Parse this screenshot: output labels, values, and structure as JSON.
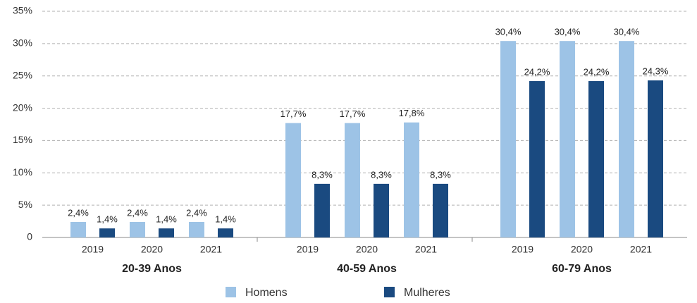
{
  "chart_data": {
    "type": "bar",
    "groups": [
      "20-39 Anos",
      "40-59 Anos",
      "60-79 Anos"
    ],
    "categories": [
      "2019",
      "2020",
      "2021",
      "2019",
      "2020",
      "2021",
      "2019",
      "2020",
      "2021"
    ],
    "series": [
      {
        "name": "Homens",
        "color": "#9dc3e6",
        "values": [
          2.4,
          2.4,
          2.4,
          17.7,
          17.7,
          17.8,
          30.4,
          30.4,
          30.4
        ],
        "value_labels": [
          "2,4%",
          "2,4%",
          "2,4%",
          "17,7%",
          "17,7%",
          "17,8%",
          "30,4%",
          "30,4%",
          "30,4%"
        ]
      },
      {
        "name": "Mulheres",
        "color": "#1a4a80",
        "values": [
          1.4,
          1.4,
          1.4,
          8.3,
          8.3,
          8.3,
          24.2,
          24.2,
          24.3
        ],
        "value_labels": [
          "1,4%",
          "1,4%",
          "1,4%",
          "8,3%",
          "8,3%",
          "8,3%",
          "24,2%",
          "24,2%",
          "24,3%"
        ]
      }
    ],
    "ylim": [
      0,
      35
    ],
    "yticks": [
      0,
      {
        "value": 5,
        "label": "5%"
      },
      {
        "value": 10,
        "label": "10%"
      },
      {
        "value": 15,
        "label": "15%"
      },
      {
        "value": 20,
        "label": "20%"
      },
      {
        "value": 25,
        "label": "25%"
      },
      {
        "value": 30,
        "label": "30%"
      },
      {
        "value": 35,
        "label": "35%"
      }
    ],
    "grid": true,
    "legend": "bottom"
  }
}
